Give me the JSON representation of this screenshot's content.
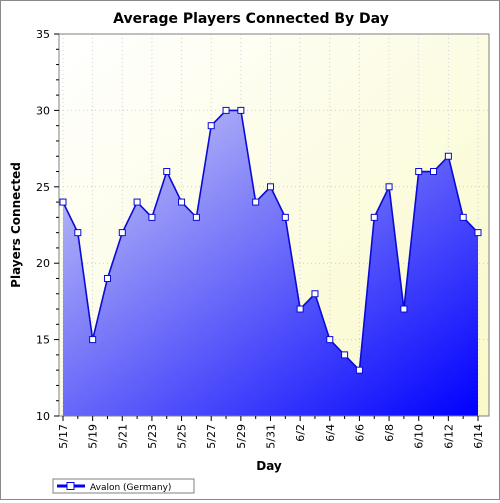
{
  "chart_data": {
    "type": "area",
    "title": "Average Players Connected By Day",
    "xlabel": "Day",
    "ylabel": "Players Connected",
    "ylim": [
      10,
      35
    ],
    "yticks": [
      10,
      15,
      20,
      25,
      30,
      35
    ],
    "grid": true,
    "legend_position": "bottom-left",
    "categories": [
      "5/17",
      "5/18",
      "5/19",
      "5/20",
      "5/21",
      "5/22",
      "5/23",
      "5/24",
      "5/25",
      "5/26",
      "5/27",
      "5/28",
      "5/29",
      "5/30",
      "5/31",
      "6/1",
      "6/2",
      "6/3",
      "6/4",
      "6/5",
      "6/6",
      "6/7",
      "6/8",
      "6/9",
      "6/10",
      "6/11",
      "6/12",
      "6/13",
      "6/14"
    ],
    "tick_labels": [
      "5/17",
      "5/19",
      "5/21",
      "5/23",
      "5/25",
      "5/27",
      "5/29",
      "5/31",
      "6/2",
      "6/4",
      "6/6",
      "6/8",
      "6/10",
      "6/12",
      "6/14"
    ],
    "series": [
      {
        "name": "Avalon (Germany)",
        "values": [
          24,
          22,
          15,
          19,
          22,
          24,
          23,
          26,
          24,
          23,
          29,
          30,
          30,
          24,
          25,
          23,
          17,
          18,
          15,
          14,
          13,
          23,
          25,
          17,
          26,
          26,
          27,
          23,
          22
        ],
        "color": "#0000ff"
      }
    ],
    "colors": {
      "plot_bg_top_left": "#ffffff",
      "plot_bg_bottom_right": "#f9f9c8",
      "fill_light": "#cfcff5",
      "fill_dark": "#0000ff",
      "line": "#0a0ad6"
    }
  }
}
